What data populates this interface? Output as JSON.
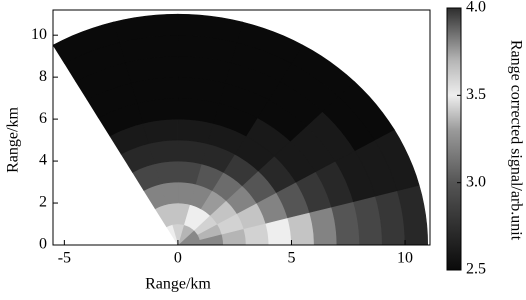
{
  "chart_data": {
    "type": "polar-heatmap",
    "xlabel": "Range/km",
    "ylabel": "Range/km",
    "xlim": [
      -5.5,
      11.1
    ],
    "ylim": [
      0,
      11.2
    ],
    "xticks": [
      -5,
      0,
      5,
      10
    ],
    "yticks": [
      0,
      2,
      4,
      6,
      8,
      10
    ],
    "angle_bins": [
      0,
      15,
      30,
      45,
      60,
      75,
      90,
      105,
      120
    ],
    "range_bins": [
      0,
      1,
      2,
      3,
      4,
      5,
      6,
      7,
      8,
      9,
      10,
      11
    ],
    "values": [
      [
        3.8,
        3.8,
        3.7,
        3.6,
        3.5,
        3.4,
        3.2,
        3.0,
        2.9,
        2.8,
        2.7
      ],
      [
        3.8,
        3.7,
        3.6,
        3.4,
        3.2,
        3.0,
        2.8,
        2.7,
        2.6,
        2.6,
        2.6
      ],
      [
        3.8,
        3.6,
        3.4,
        3.2,
        3.0,
        2.7,
        2.6,
        2.6,
        2.6,
        2.5,
        2.5
      ],
      [
        3.7,
        3.5,
        3.3,
        3.1,
        2.8,
        2.6,
        2.6,
        2.5,
        2.5,
        2.5,
        2.5
      ],
      [
        3.7,
        3.5,
        3.2,
        3.0,
        2.7,
        2.6,
        2.5,
        2.5,
        2.5,
        2.5,
        2.5
      ],
      [
        3.6,
        3.4,
        3.2,
        2.9,
        2.7,
        2.6,
        2.5,
        2.5,
        2.5,
        2.5,
        2.5
      ],
      [
        3.6,
        3.4,
        3.2,
        2.9,
        2.7,
        2.6,
        2.5,
        2.5,
        2.5,
        2.5,
        2.5
      ],
      [
        3.5,
        3.4,
        3.2,
        2.9,
        2.7,
        2.6,
        2.5,
        2.5,
        2.5,
        2.5,
        2.5
      ]
    ],
    "colorbar_label": "Range corrected signal/arb.unit",
    "clim": [
      2.5,
      4.0
    ],
    "cticks": [
      {
        "value": 2.5,
        "label": "2.5"
      },
      {
        "value": 3.0,
        "label": "3.0"
      },
      {
        "value": 3.5,
        "label": "3.5"
      },
      {
        "value": 4.0,
        "label": "4.0"
      }
    ],
    "colormap": [
      {
        "value": 2.5,
        "color": "#0a0a0a"
      },
      {
        "value": 3.0,
        "color": "#555555"
      },
      {
        "value": 3.3,
        "color": "#9a9a9a"
      },
      {
        "value": 3.5,
        "color": "#eeeeee"
      },
      {
        "value": 3.7,
        "color": "#b5b5b5"
      },
      {
        "value": 4.0,
        "color": "#2e2e2e"
      }
    ]
  }
}
